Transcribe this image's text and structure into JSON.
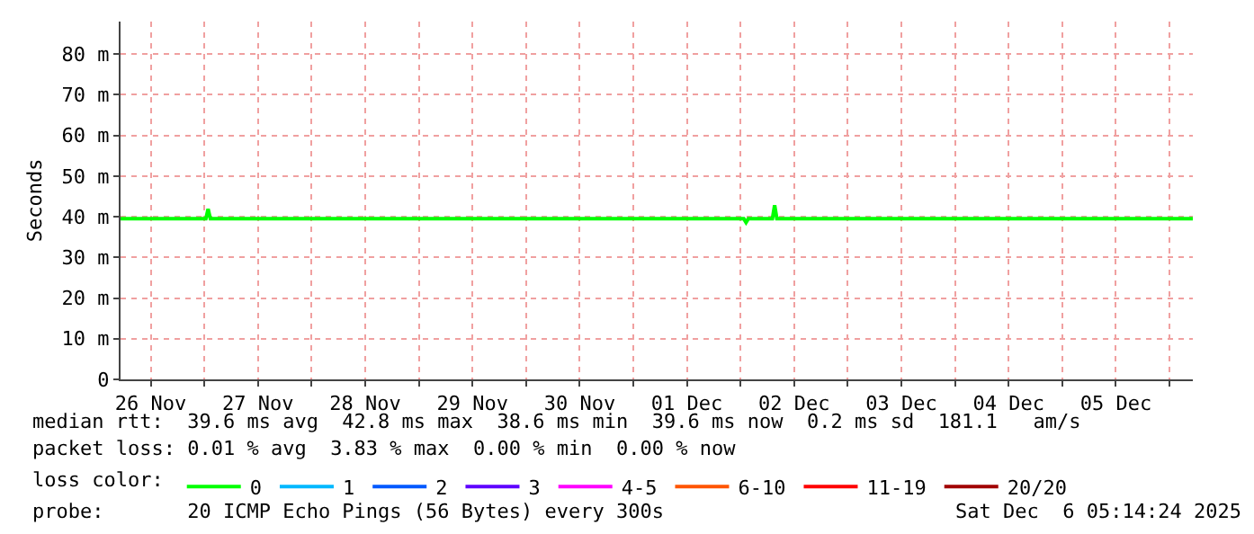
{
  "chart_data": {
    "type": "line",
    "ylabel": "Seconds",
    "legend_title": "loss color:",
    "legend": "bottom",
    "grid": true,
    "x": [
      "2025-11-26T05:14",
      "2025-11-27T00:20",
      "2025-11-27T00:50",
      "2025-11-27T01:20",
      "2025-12-02T00:44",
      "2025-12-02T01:14",
      "2025-12-02T01:44",
      "2025-12-02T07:08",
      "2025-12-02T07:38",
      "2025-12-02T08:08",
      "2025-12-06T05:14"
    ],
    "series": [
      {
        "name": "0",
        "color": "#00ff00",
        "values": [
          39.5,
          39.5,
          41.9,
          39.5,
          39.5,
          38.6,
          39.5,
          39.5,
          42.8,
          39.5,
          39.5
        ]
      },
      {
        "name": "1",
        "color": "#00b8ff",
        "values": [
          null,
          null,
          null,
          null,
          null,
          null,
          null,
          null,
          null,
          null,
          null
        ]
      },
      {
        "name": "2",
        "color": "#0059ff",
        "values": [
          null,
          null,
          null,
          null,
          null,
          null,
          null,
          null,
          null,
          null,
          null
        ]
      },
      {
        "name": "3",
        "color": "#5e00ff",
        "values": [
          null,
          null,
          null,
          null,
          null,
          null,
          null,
          null,
          null,
          null,
          null
        ]
      },
      {
        "name": "4-5",
        "color": "#ff00ff",
        "values": [
          null,
          null,
          null,
          null,
          null,
          null,
          null,
          null,
          null,
          null,
          null
        ]
      },
      {
        "name": "6-10",
        "color": "#ff5500",
        "values": [
          null,
          null,
          null,
          null,
          null,
          null,
          null,
          null,
          null,
          null,
          null
        ]
      },
      {
        "name": "11-19",
        "color": "#ff0000",
        "values": [
          null,
          null,
          null,
          null,
          null,
          null,
          null,
          null,
          null,
          null,
          null
        ]
      },
      {
        "name": "20/20",
        "color": "#a10000",
        "values": [
          null,
          null,
          null,
          null,
          null,
          null,
          null,
          null,
          null,
          null,
          null
        ]
      }
    ],
    "xlim": [
      "2025-11-26T05:14",
      "2025-12-06T05:14"
    ],
    "xticks": [
      {
        "value": "2025-11-26T12:00",
        "label": "26 Nov"
      },
      {
        "value": "2025-11-27T00:00",
        "label": null
      },
      {
        "value": "2025-11-27T12:00",
        "label": "27 Nov"
      },
      {
        "value": "2025-11-28T00:00",
        "label": null
      },
      {
        "value": "2025-11-28T12:00",
        "label": "28 Nov"
      },
      {
        "value": "2025-11-29T00:00",
        "label": null
      },
      {
        "value": "2025-11-29T12:00",
        "label": "29 Nov"
      },
      {
        "value": "2025-11-30T00:00",
        "label": null
      },
      {
        "value": "2025-11-30T12:00",
        "label": "30 Nov"
      },
      {
        "value": "2025-12-01T00:00",
        "label": null
      },
      {
        "value": "2025-12-01T12:00",
        "label": "01 Dec"
      },
      {
        "value": "2025-12-02T00:00",
        "label": null
      },
      {
        "value": "2025-12-02T12:00",
        "label": "02 Dec"
      },
      {
        "value": "2025-12-03T00:00",
        "label": null
      },
      {
        "value": "2025-12-03T12:00",
        "label": "03 Dec"
      },
      {
        "value": "2025-12-04T00:00",
        "label": null
      },
      {
        "value": "2025-12-04T12:00",
        "label": "04 Dec"
      },
      {
        "value": "2025-12-05T00:00",
        "label": null
      },
      {
        "value": "2025-12-05T12:00",
        "label": "05 Dec"
      },
      {
        "value": "2025-12-06T00:00",
        "label": null
      }
    ],
    "ylim": [
      0,
      88
    ],
    "yticks": [
      0,
      {
        "value": 10,
        "label": "10 m"
      },
      {
        "value": 20,
        "label": "20 m"
      },
      {
        "value": 30,
        "label": "30 m"
      },
      {
        "value": 40,
        "label": "40 m"
      },
      {
        "value": 50,
        "label": "50 m"
      },
      {
        "value": 60,
        "label": "60 m"
      },
      {
        "value": 70,
        "label": "70 m"
      },
      {
        "value": 80,
        "label": "80 m"
      }
    ],
    "annotations": [
      "median rtt:  39.6 ms avg  42.8 ms max  38.6 ms min  39.6 ms now  0.2 ms sd  181.1   am/s",
      "packet loss: 0.01 % avg  3.83 % max  0.00 % min  0.00 % now",
      "probe:       20 ICMP Echo Pings (56 Bytes) every 300s",
      "Sat Dec  6 05:14:24 2025"
    ]
  }
}
